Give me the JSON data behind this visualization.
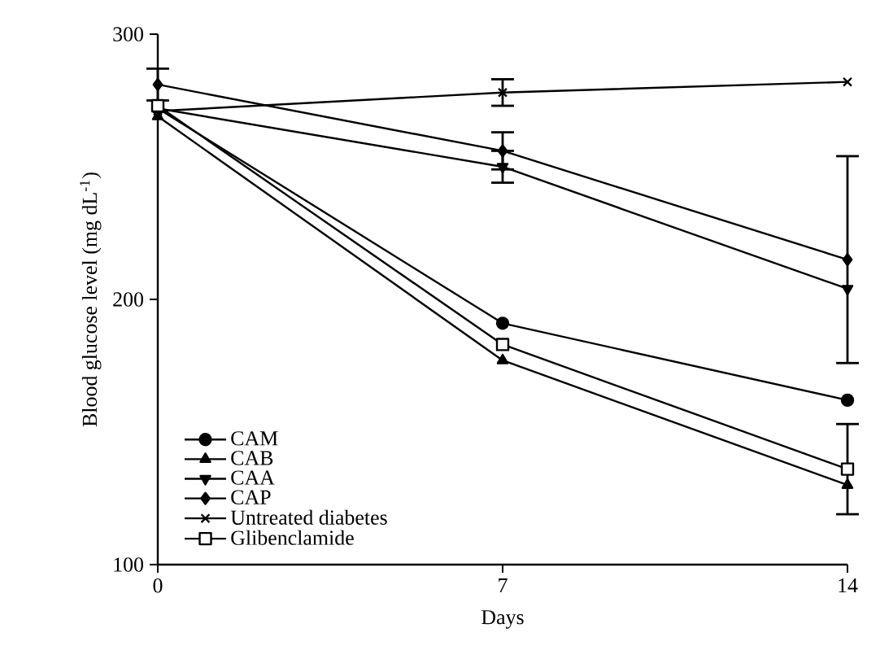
{
  "chart_data": {
    "type": "line",
    "xlabel": "Days",
    "ylabel": "Blood glucose level (mg dL$^{-1}$)",
    "x": [
      0,
      7,
      14
    ],
    "xlim": [
      0,
      14
    ],
    "xticks": [
      0,
      7,
      14
    ],
    "ylim": [
      100,
      300
    ],
    "yticks": [
      100,
      200,
      300
    ],
    "legend": "bottom left",
    "grid": false,
    "line_style": "solid",
    "series": [
      {
        "name": "CAM",
        "color": "#000000",
        "marker": "circle",
        "values": [
          272,
          191,
          162
        ]
      },
      {
        "name": "CAB",
        "color": "#000000",
        "marker": "triangle",
        "values": [
          269,
          177,
          130
        ]
      },
      {
        "name": "CAA",
        "color": "#000000",
        "marker": "triangle-down",
        "values": [
          272,
          250,
          204
        ],
        "errors": [
          null,
          6,
          null
        ]
      },
      {
        "name": "CAP",
        "color": "#000000",
        "marker": "diamond",
        "values": [
          281,
          256,
          215
        ],
        "errors": [
          6,
          7,
          39
        ]
      },
      {
        "name": "Untreated diabetes",
        "color": "#000000",
        "marker": "cross",
        "values": [
          271,
          278,
          282
        ],
        "errors": [
          null,
          5,
          null
        ]
      },
      {
        "name": "Glibenclamide",
        "color": "#000000",
        "marker": "square",
        "values": [
          273,
          183,
          136
        ],
        "errors": [
          null,
          null,
          17
        ]
      }
    ]
  }
}
